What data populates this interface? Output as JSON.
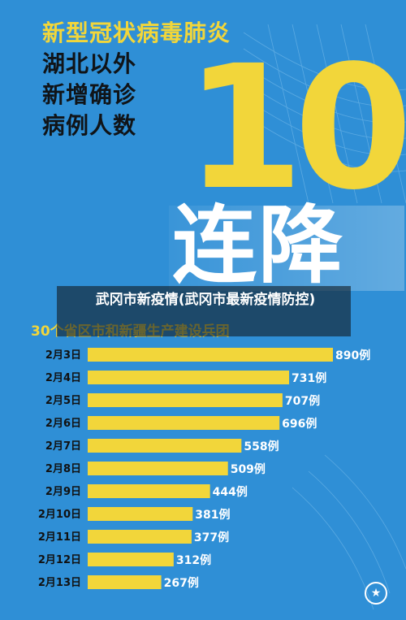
{
  "poster": {
    "headline": [
      "新型冠状病毒肺炎",
      "湖北以外",
      "新增确诊",
      "病例人数"
    ],
    "big_number": "10",
    "big_word": "连降",
    "overlay_title": "武冈市新疫情(武冈市最新疫情防控)",
    "subtitle": "30个省区市和新疆生产建设兵团",
    "emblem_icon": "national-emblem-icon",
    "colors": {
      "background": "#2f8fd6",
      "accent": "#f2d63a",
      "bar": "#f2d63a",
      "value_text": "#ffffff"
    }
  },
  "chart_data": {
    "type": "bar",
    "orientation": "horizontal",
    "title": "",
    "categories": [
      "2月3日",
      "2月4日",
      "2月5日",
      "2月6日",
      "2月7日",
      "2月8日",
      "2月9日",
      "2月10日",
      "2月11日",
      "2月12日",
      "2月13日"
    ],
    "values": [
      890,
      731,
      707,
      696,
      558,
      509,
      444,
      381,
      377,
      312,
      267
    ],
    "value_labels": [
      "890例",
      "731例",
      "707例",
      "696例",
      "558例",
      "509例",
      "444例",
      "381例",
      "377例",
      "312例",
      "267例"
    ],
    "xlim": [
      0,
      890
    ],
    "grid": false,
    "legend": "none"
  }
}
